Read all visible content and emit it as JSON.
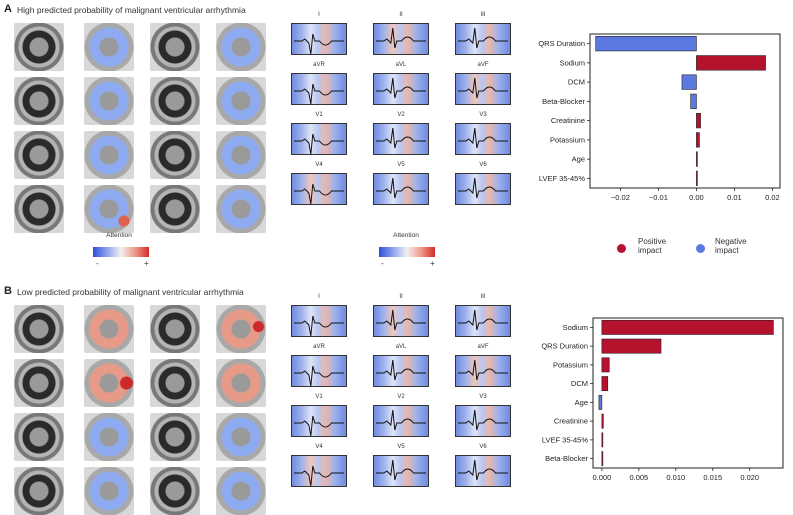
{
  "panel_a": {
    "letter": "A",
    "title": "High predicted probability of malignant ventricular arrhythmia",
    "attention_title": "Attention",
    "cb_minus": "-",
    "cb_plus": "+"
  },
  "panel_b": {
    "letter": "B",
    "title": "Low predicted probability of malignant ventricular arrhythmia"
  },
  "leads": [
    "I",
    "II",
    "III",
    "aVR",
    "aVL",
    "aVF",
    "V1",
    "V2",
    "V3",
    "V4",
    "V5",
    "V6"
  ],
  "legend": {
    "positive_line1": "Positive",
    "positive_line2": "impact",
    "negative_line1": "Negative",
    "negative_line2": "impact",
    "positive_color": "#b5122e",
    "negative_color": "#5b79e0"
  },
  "chart_data": [
    {
      "type": "bar",
      "orientation": "horizontal",
      "panel": "A",
      "categories": [
        "QRS Duration",
        "Sodium",
        "DCM",
        "Beta-Blocker",
        "Creatinine",
        "Potassium",
        "Age",
        "LVEF 35-45%"
      ],
      "values": [
        -0.0265,
        0.0182,
        -0.0038,
        -0.0015,
        0.0011,
        0.0008,
        0.0002,
        0.0001
      ],
      "xlim": [
        -0.028,
        0.022
      ],
      "xticks": [
        -0.02,
        -0.01,
        0.0,
        0.01,
        0.02
      ],
      "xtick_labels": [
        "−0.02",
        "−0.01",
        "0.00",
        "0.01",
        "0.02"
      ]
    },
    {
      "type": "bar",
      "orientation": "horizontal",
      "panel": "B",
      "categories": [
        "Sodium",
        "QRS Duration",
        "Potassium",
        "DCM",
        "Age",
        "Creatinine",
        "LVEF 35-45%",
        "Beta-Blocker"
      ],
      "values": [
        0.0232,
        0.008,
        0.001,
        0.0008,
        -0.0004,
        0.0002,
        0.0001,
        0.0001
      ],
      "xlim": [
        -0.0012,
        0.0245
      ],
      "xticks": [
        0.0,
        0.005,
        0.01,
        0.015,
        0.02
      ],
      "xtick_labels": [
        "0.000",
        "0.005",
        "0.010",
        "0.015",
        "0.020"
      ]
    }
  ]
}
